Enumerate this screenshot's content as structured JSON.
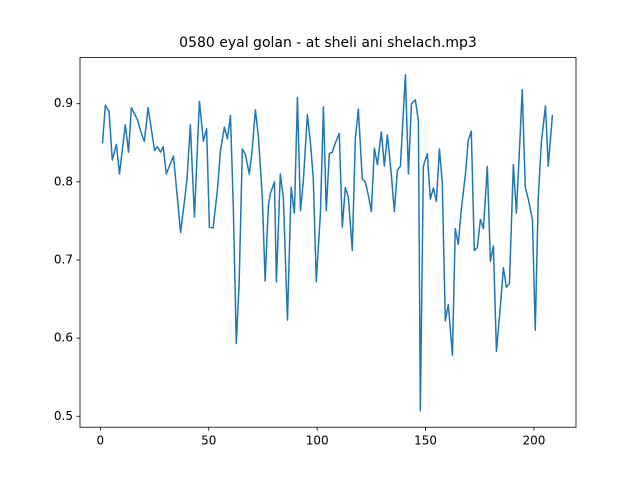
{
  "chart_data": {
    "type": "line",
    "title": "0580 eyal golan - at sheli ani shelach.mp3",
    "x": [
      1,
      2.3,
      4,
      5.5,
      7.4,
      8.8,
      11.5,
      13,
      14.3,
      17,
      19.4,
      20.3,
      22,
      25,
      26.3,
      27.7,
      29,
      30.4,
      33.7,
      35.5,
      37,
      39,
      40,
      41.5,
      43.4,
      45,
      45.7,
      47.5,
      49,
      50.3,
      52,
      54,
      55.4,
      57.2,
      58.6,
      60,
      61.3,
      62.7,
      64,
      65.5,
      66.9,
      68.7,
      70,
      71.5,
      72.9,
      74.7,
      76,
      77.5,
      78.4,
      80.3,
      81.2,
      83,
      84.4,
      86.3,
      88,
      89.5,
      90.9,
      92.3,
      93.6,
      95.5,
      96.9,
      98.2,
      99.6,
      101.5,
      102.9,
      104.2,
      105.6,
      107,
      108.4,
      110.2,
      111.6,
      113,
      114.4,
      116.2,
      117.6,
      119,
      120.8,
      122.2,
      123.6,
      125,
      126.4,
      127.8,
      129.6,
      131,
      132.4,
      134.2,
      135.6,
      137,
      138.4,
      140.7,
      142.1,
      143.5,
      145.3,
      146.7,
      147.6,
      149,
      150.8,
      152.2,
      153.6,
      155,
      156.4,
      157.7,
      159.1,
      160.5,
      162.4,
      163.7,
      165.1,
      166.5,
      168.4,
      169.7,
      171.1,
      172.5,
      173.9,
      175.3,
      176.7,
      178.5,
      179.9,
      181.3,
      182.7,
      184.5,
      185.9,
      187.3,
      188.7,
      190.5,
      191.9,
      193.3,
      194.6,
      196,
      197.4,
      199.3,
      200.6,
      202,
      203.4,
      205.3,
      206.6,
      208.5
    ],
    "series": [
      {
        "color": "#1f77b4",
        "values": [
          0.85,
          0.898,
          0.89,
          0.828,
          0.848,
          0.81,
          0.873,
          0.838,
          0.895,
          0.88,
          0.858,
          0.852,
          0.895,
          0.84,
          0.845,
          0.838,
          0.845,
          0.81,
          0.833,
          0.78,
          0.735,
          0.78,
          0.805,
          0.873,
          0.755,
          0.86,
          0.903,
          0.852,
          0.868,
          0.742,
          0.741,
          0.79,
          0.84,
          0.87,
          0.855,
          0.885,
          0.77,
          0.593,
          0.67,
          0.842,
          0.835,
          0.81,
          0.84,
          0.892,
          0.858,
          0.78,
          0.673,
          0.77,
          0.785,
          0.8,
          0.672,
          0.81,
          0.78,
          0.623,
          0.793,
          0.76,
          0.908,
          0.763,
          0.8,
          0.886,
          0.85,
          0.805,
          0.672,
          0.76,
          0.896,
          0.763,
          0.836,
          0.838,
          0.85,
          0.862,
          0.742,
          0.793,
          0.78,
          0.712,
          0.855,
          0.893,
          0.804,
          0.8,
          0.783,
          0.762,
          0.843,
          0.822,
          0.864,
          0.82,
          0.86,
          0.81,
          0.762,
          0.815,
          0.82,
          0.937,
          0.81,
          0.9,
          0.905,
          0.878,
          0.507,
          0.82,
          0.836,
          0.778,
          0.792,
          0.775,
          0.842,
          0.8,
          0.622,
          0.643,
          0.578,
          0.74,
          0.72,
          0.765,
          0.81,
          0.853,
          0.865,
          0.712,
          0.716,
          0.752,
          0.74,
          0.82,
          0.698,
          0.718,
          0.583,
          0.64,
          0.69,
          0.665,
          0.67,
          0.822,
          0.76,
          0.84,
          0.918,
          0.793,
          0.778,
          0.752,
          0.61,
          0.78,
          0.85,
          0.897,
          0.82,
          0.885
        ]
      }
    ],
    "xlim": [
      -9.4,
      219.4
    ],
    "ylim": [
      0.486,
      0.959
    ],
    "xticks": [
      0,
      50,
      100,
      150,
      200
    ],
    "yticks": [
      0.5,
      0.6,
      0.7,
      0.8,
      0.9
    ]
  }
}
